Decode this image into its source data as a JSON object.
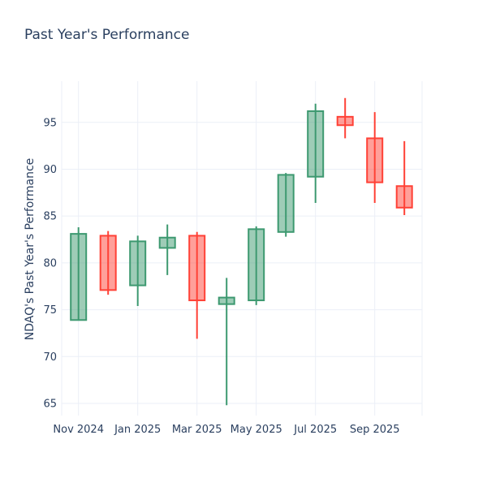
{
  "chart_data": {
    "type": "candlestick",
    "title": "Past Year's Performance",
    "ylabel": "NDAQ's Past Year's Performance",
    "xlabel": "",
    "legend": false,
    "grid": true,
    "x_tick_labels": [
      "Nov 2024",
      "Jan 2025",
      "Mar 2025",
      "May 2025",
      "Jul 2025",
      "Sep 2025"
    ],
    "y_ticks": [
      65,
      70,
      75,
      80,
      85,
      90,
      95
    ],
    "ylim": [
      63.7,
      99.4
    ],
    "categories": [
      "Nov 2024",
      "Dec 2024",
      "Jan 2025",
      "Feb 2025",
      "Mar 2025",
      "Apr 2025",
      "May 2025",
      "Jun 2025",
      "Jul 2025",
      "Aug 2025",
      "Sep 2025",
      "Oct 2025"
    ],
    "ohlc": [
      {
        "month": "Nov 2024",
        "open": 73.9,
        "high": 83.8,
        "low": 73.9,
        "close": 83.1
      },
      {
        "month": "Dec 2024",
        "open": 82.9,
        "high": 83.4,
        "low": 76.6,
        "close": 77.1
      },
      {
        "month": "Jan 2025",
        "open": 77.6,
        "high": 82.9,
        "low": 75.4,
        "close": 82.3
      },
      {
        "month": "Feb 2025",
        "open": 81.6,
        "high": 84.1,
        "low": 78.7,
        "close": 82.7
      },
      {
        "month": "Mar 2025",
        "open": 82.9,
        "high": 83.3,
        "low": 71.9,
        "close": 76.0
      },
      {
        "month": "Apr 2025",
        "open": 75.6,
        "high": 78.4,
        "low": 64.8,
        "close": 76.3
      },
      {
        "month": "May 2025",
        "open": 76.0,
        "high": 83.9,
        "low": 75.5,
        "close": 83.6
      },
      {
        "month": "Jun 2025",
        "open": 83.3,
        "high": 89.6,
        "low": 82.8,
        "close": 89.4
      },
      {
        "month": "Jul 2025",
        "open": 89.2,
        "high": 97.0,
        "low": 86.4,
        "close": 96.2
      },
      {
        "month": "Aug 2025",
        "open": 95.6,
        "high": 97.6,
        "low": 93.3,
        "close": 94.7
      },
      {
        "month": "Sep 2025",
        "open": 93.3,
        "high": 96.1,
        "low": 86.4,
        "close": 88.6
      },
      {
        "month": "Oct 2025",
        "open": 88.2,
        "high": 93.0,
        "low": 85.1,
        "close": 85.9
      }
    ],
    "colors": {
      "increasing": "#3D9970",
      "decreasing": "#FF4136",
      "grid": "#EBEFF7",
      "text": "#2A3F5F",
      "background": "#FFFFFF"
    }
  }
}
